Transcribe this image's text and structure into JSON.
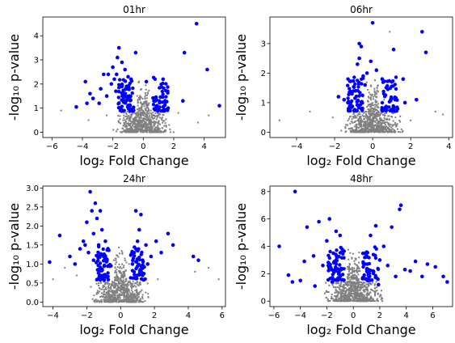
{
  "chart_data": [
    {
      "type": "scatter",
      "title": "01hr",
      "xlabel": "log₂ Fold Change",
      "ylabel": "-log₁₀ p-value",
      "xlim": [
        -6.6,
        5.4
      ],
      "ylim": [
        -0.22,
        4.78
      ],
      "xticks": [
        -6,
        -4,
        -2,
        0,
        2,
        4
      ],
      "yticks": [
        0,
        1,
        2,
        3,
        4
      ],
      "grid": false,
      "colors": {
        "background": "#808080",
        "significant": "#0000ff"
      },
      "series": [
        {
          "values": [
            [
              -0.3,
              0.4
            ],
            [
              0.5,
              0.9
            ],
            [
              -1.2,
              0.5
            ],
            [
              1.1,
              0.6
            ],
            [
              0.2,
              1.1
            ],
            [
              -0.7,
              0.3
            ],
            [
              -2.4,
              0.7
            ],
            [
              2.3,
              0.8
            ],
            [
              -5.4,
              0.9
            ],
            [
              -3.6,
              0.5
            ],
            [
              3.6,
              0.4
            ],
            [
              4.3,
              0.7
            ],
            [
              -0.1,
              0.1
            ],
            [
              0.8,
              0.2
            ],
            [
              -1.6,
              0.4
            ],
            [
              1.7,
              0.3
            ],
            [
              0.3,
              1.6
            ],
            [
              -0.4,
              1.5
            ],
            [
              0.6,
              1.4
            ],
            [
              1.3,
              1.0
            ]
          ]
        },
        {
          "values": [
            [
              -3.8,
              2.1
            ],
            [
              -3.5,
              1.6
            ],
            [
              -3.7,
              1.2
            ],
            [
              -4.4,
              1.05
            ],
            [
              -3.3,
              1.4
            ],
            [
              -2.8,
              1.8
            ],
            [
              -2.6,
              2.4
            ],
            [
              -2.3,
              2.4
            ],
            [
              -2.1,
              2.0
            ],
            [
              -2.0,
              2.7
            ],
            [
              -1.9,
              2.2
            ],
            [
              -1.8,
              1.7
            ],
            [
              -1.75,
              2.4
            ],
            [
              -1.7,
              3.1
            ],
            [
              -1.6,
              3.5
            ],
            [
              -1.5,
              1.9
            ],
            [
              -1.4,
              2.9
            ],
            [
              -1.3,
              1.6
            ],
            [
              -1.2,
              2.6
            ],
            [
              -1.0,
              2.3
            ],
            [
              -0.8,
              2.2
            ],
            [
              -0.9,
              1.5
            ],
            [
              -2.4,
              1.5
            ],
            [
              -2.9,
              1.2
            ],
            [
              -1.1,
              1.9
            ],
            [
              -0.5,
              3.3
            ],
            [
              0.2,
              2.1
            ],
            [
              0.7,
              1.3
            ],
            [
              0.9,
              1.1
            ],
            [
              1.3,
              2.2
            ],
            [
              1.6,
              1.7
            ],
            [
              2.7,
              3.3
            ],
            [
              2.6,
              1.3
            ],
            [
              3.5,
              4.5
            ],
            [
              4.2,
              2.6
            ],
            [
              5.0,
              1.1
            ]
          ]
        }
      ]
    },
    {
      "type": "scatter",
      "title": "06hr",
      "xlabel": "log₂ Fold Change",
      "ylabel": "-log₁₀ p-value",
      "xlim": [
        -5.4,
        4.2
      ],
      "ylim": [
        -0.18,
        3.9
      ],
      "xticks": [
        -4,
        -2,
        0,
        2,
        4
      ],
      "yticks": [
        0,
        1,
        2,
        3
      ],
      "grid": false,
      "colors": {
        "background": "#808080",
        "significant": "#0000ff"
      },
      "series": [
        {
          "values": [
            [
              -0.2,
              0.3
            ],
            [
              0.4,
              0.6
            ],
            [
              -1.3,
              0.4
            ],
            [
              1.2,
              0.5
            ],
            [
              -4.9,
              0.4
            ],
            [
              -3.3,
              0.7
            ],
            [
              3.3,
              0.7
            ],
            [
              3.7,
              0.6
            ],
            [
              0.1,
              1.4
            ],
            [
              -0.5,
              1.2
            ],
            [
              0.6,
              1.1
            ],
            [
              0.9,
              3.4
            ],
            [
              -2.1,
              0.5
            ],
            [
              2.0,
              0.4
            ]
          ]
        },
        {
          "values": [
            [
              -1.8,
              1.2
            ],
            [
              -1.5,
              1.1
            ],
            [
              -1.3,
              1.0
            ],
            [
              -0.9,
              1.4
            ],
            [
              -0.8,
              2.3
            ],
            [
              -0.7,
              3.0
            ],
            [
              -0.6,
              2.9
            ],
            [
              -0.7,
              2.5
            ],
            [
              -0.5,
              1.9
            ],
            [
              -0.4,
              1.6
            ],
            [
              -0.3,
              2.0
            ],
            [
              -0.1,
              2.4
            ],
            [
              0.0,
              3.7
            ],
            [
              0.2,
              2.1
            ],
            [
              0.5,
              1.8
            ],
            [
              1.0,
              1.7
            ],
            [
              1.1,
              2.8
            ],
            [
              1.6,
              1.8
            ],
            [
              2.6,
              3.4
            ],
            [
              2.8,
              2.7
            ],
            [
              2.3,
              1.1
            ],
            [
              1.7,
              1.0
            ]
          ]
        }
      ]
    },
    {
      "type": "scatter",
      "title": "24hr",
      "xlabel": "log₂ Fold Change",
      "ylabel": "-log₁₀ p-value",
      "xlim": [
        -4.6,
        6.2
      ],
      "ylim": [
        -0.12,
        3.05
      ],
      "xticks": [
        -4,
        -2,
        0,
        2,
        4,
        6
      ],
      "yticks": [
        0.0,
        0.5,
        1.0,
        1.5,
        2.0,
        2.5,
        3.0
      ],
      "grid": false,
      "colors": {
        "background": "#808080",
        "significant": "#0000ff"
      },
      "series": [
        {
          "values": [
            [
              -0.2,
              0.3
            ],
            [
              0.3,
              0.6
            ],
            [
              -0.8,
              0.5
            ],
            [
              0.9,
              0.4
            ],
            [
              -2.6,
              0.7
            ],
            [
              2.2,
              0.6
            ],
            [
              -4.0,
              0.6
            ],
            [
              5.2,
              0.9
            ],
            [
              5.8,
              0.6
            ],
            [
              0.1,
              1.3
            ],
            [
              -0.4,
              1.1
            ],
            [
              0.5,
              1.0
            ],
            [
              4.4,
              0.8
            ],
            [
              -3.3,
              0.9
            ]
          ]
        },
        {
          "values": [
            [
              -4.2,
              1.05
            ],
            [
              -3.6,
              1.75
            ],
            [
              -3.0,
              1.2
            ],
            [
              -2.7,
              1.0
            ],
            [
              -2.4,
              1.4
            ],
            [
              -2.2,
              1.6
            ],
            [
              -2.0,
              2.1
            ],
            [
              -1.9,
              1.3
            ],
            [
              -1.8,
              2.9
            ],
            [
              -1.7,
              2.4
            ],
            [
              -1.6,
              1.8
            ],
            [
              -1.5,
              2.6
            ],
            [
              -1.4,
              2.2
            ],
            [
              -1.3,
              1.5
            ],
            [
              -1.2,
              2.4
            ],
            [
              -1.1,
              1.9
            ],
            [
              -1.0,
              1.2
            ],
            [
              -0.9,
              1.6
            ],
            [
              -1.6,
              1.1
            ],
            [
              -2.1,
              1.5
            ],
            [
              0.8,
              1.3
            ],
            [
              0.9,
              2.4
            ],
            [
              1.0,
              1.6
            ],
            [
              1.1,
              1.9
            ],
            [
              1.3,
              1.1
            ],
            [
              1.2,
              2.3
            ],
            [
              1.5,
              1.5
            ],
            [
              1.8,
              1.2
            ],
            [
              2.1,
              1.6
            ],
            [
              2.4,
              1.3
            ],
            [
              2.8,
              1.8
            ],
            [
              3.1,
              1.5
            ],
            [
              4.3,
              1.2
            ],
            [
              4.6,
              1.1
            ],
            [
              0.7,
              1.0
            ],
            [
              1.6,
              1.0
            ]
          ]
        }
      ]
    },
    {
      "type": "scatter",
      "title": "48hr",
      "xlabel": "log₂ Fold Change",
      "ylabel": "-log₁₀ p-value",
      "xlim": [
        -6.3,
        7.5
      ],
      "ylim": [
        -0.4,
        8.4
      ],
      "xticks": [
        -6,
        -4,
        -2,
        0,
        2,
        4,
        6
      ],
      "yticks": [
        0,
        2,
        4,
        6,
        8
      ],
      "grid": false,
      "colors": {
        "background": "#808080",
        "significant": "#0000ff"
      },
      "series": [
        {
          "values": [
            [
              -0.2,
              0.6
            ],
            [
              0.4,
              1.2
            ],
            [
              -0.7,
              0.9
            ],
            [
              0.8,
              0.8
            ],
            [
              0.1,
              1.9
            ],
            [
              -0.4,
              1.6
            ],
            [
              0.5,
              2.2
            ],
            [
              -0.1,
              3.1
            ],
            [
              0.2,
              0.3
            ],
            [
              -0.9,
              0.4
            ],
            [
              1.0,
              0.5
            ],
            [
              -0.6,
              2.4
            ]
          ]
        },
        {
          "values": [
            [
              -5.6,
              4.0
            ],
            [
              -4.9,
              1.9
            ],
            [
              -4.4,
              8.0
            ],
            [
              -4.0,
              1.5
            ],
            [
              -3.7,
              2.9
            ],
            [
              -3.5,
              5.4
            ],
            [
              -3.0,
              3.3
            ],
            [
              -2.6,
              5.8
            ],
            [
              -2.3,
              2.6
            ],
            [
              -2.0,
              4.4
            ],
            [
              -1.8,
              6.0
            ],
            [
              -1.5,
              3.5
            ],
            [
              -1.3,
              5.1
            ],
            [
              -1.1,
              2.3
            ],
            [
              -1.0,
              4.8
            ],
            [
              -1.6,
              1.4
            ],
            [
              -2.9,
              1.1
            ],
            [
              -4.6,
              1.4
            ],
            [
              1.0,
              3.3
            ],
            [
              1.3,
              4.8
            ],
            [
              1.5,
              2.2
            ],
            [
              1.7,
              5.5
            ],
            [
              2.0,
              3.0
            ],
            [
              2.3,
              4.0
            ],
            [
              2.6,
              2.6
            ],
            [
              2.9,
              5.4
            ],
            [
              3.2,
              1.8
            ],
            [
              3.5,
              6.7
            ],
            [
              3.6,
              7.0
            ],
            [
              3.9,
              2.3
            ],
            [
              4.3,
              2.2
            ],
            [
              4.7,
              2.9
            ],
            [
              5.2,
              1.8
            ],
            [
              5.6,
              2.7
            ],
            [
              6.2,
              2.5
            ],
            [
              6.8,
              1.8
            ],
            [
              7.1,
              1.4
            ],
            [
              1.1,
              1.5
            ],
            [
              1.9,
              1.2
            ],
            [
              0.9,
              2.7
            ]
          ]
        }
      ]
    }
  ]
}
